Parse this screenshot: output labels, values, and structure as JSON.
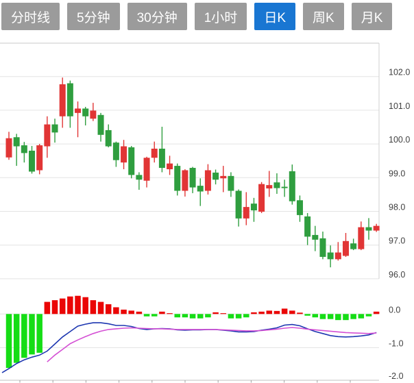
{
  "tabs": {
    "items": [
      {
        "label": "分时线"
      },
      {
        "label": "5分钟"
      },
      {
        "label": "30分钟"
      },
      {
        "label": "1小时"
      },
      {
        "label": "日K"
      },
      {
        "label": "周K"
      },
      {
        "label": "月K"
      }
    ],
    "active_index": 4,
    "active_label": "日K"
  },
  "colors": {
    "tab_bg": "#9b9b9b",
    "tab_active_bg": "#1976d2",
    "tab_text": "#ffffff",
    "candle_up": "#e13535",
    "candle_down": "#2f9e3f",
    "macd_positive": "#ea0606",
    "macd_negative": "#15dd15",
    "dif_line": "#1c36b0",
    "dea_line": "#d44fd4",
    "axis_text": "#404040",
    "gridline": "#e4e4e4"
  },
  "chart_data": [
    {
      "type": "candlestick",
      "timeframe": "日K",
      "up_color": "#e13535",
      "down_color": "#2f9e3f",
      "grid": true,
      "legend": "none",
      "ylim": [
        95.9,
        103.0
      ],
      "y_ticks": [
        {
          "value": 102.0,
          "label": "102.0"
        },
        {
          "value": 101.0,
          "label": "101.0"
        },
        {
          "value": 100.0,
          "label": "100.0"
        },
        {
          "value": 99.0,
          "label": "99.0"
        },
        {
          "value": 98.0,
          "label": "98.0"
        },
        {
          "value": 97.0,
          "label": "97.0"
        },
        {
          "value": 96.0,
          "label": "96.0"
        }
      ],
      "ohlc_format": "[open, high, low, close]; up candle (close>=open) drawn red, down candle green",
      "candles": [
        [
          99.6,
          100.36,
          99.53,
          100.17
        ],
        [
          100.2,
          100.3,
          99.35,
          99.93
        ],
        [
          99.96,
          100.06,
          99.45,
          99.73
        ],
        [
          99.8,
          99.94,
          99.12,
          99.18
        ],
        [
          99.22,
          100.0,
          99.1,
          99.96
        ],
        [
          99.93,
          100.82,
          99.59,
          100.58
        ],
        [
          100.58,
          100.75,
          100.04,
          100.34
        ],
        [
          100.82,
          101.97,
          100.48,
          101.77
        ],
        [
          101.8,
          101.88,
          100.48,
          100.82
        ],
        [
          100.92,
          101.26,
          100.2,
          101.05
        ],
        [
          101.05,
          101.1,
          100.55,
          100.82
        ],
        [
          100.75,
          101.22,
          100.68,
          100.99
        ],
        [
          100.86,
          100.92,
          100.07,
          100.27
        ],
        [
          100.41,
          100.58,
          99.9,
          99.93
        ],
        [
          100.04,
          100.07,
          99.32,
          99.52
        ],
        [
          99.45,
          100.12,
          99.25,
          99.93
        ],
        [
          99.9,
          99.94,
          98.98,
          99.08
        ],
        [
          99.08,
          99.16,
          98.64,
          98.94
        ],
        [
          98.91,
          99.62,
          98.71,
          99.59
        ],
        [
          99.59,
          100.07,
          99.45,
          99.86
        ],
        [
          99.86,
          100.51,
          99.16,
          99.29
        ],
        [
          99.25,
          99.65,
          99.08,
          99.42
        ],
        [
          99.35,
          99.42,
          98.47,
          98.61
        ],
        [
          98.61,
          99.25,
          98.44,
          99.22
        ],
        [
          99.29,
          99.32,
          98.54,
          98.71
        ],
        [
          98.76,
          98.98,
          98.16,
          98.59
        ],
        [
          98.61,
          99.4,
          98.5,
          99.22
        ],
        [
          99.15,
          99.24,
          98.8,
          98.94
        ],
        [
          98.98,
          99.35,
          98.57,
          99.05
        ],
        [
          99.05,
          99.16,
          98.43,
          98.61
        ],
        [
          98.61,
          98.65,
          97.55,
          97.79
        ],
        [
          97.79,
          98.57,
          97.59,
          98.13
        ],
        [
          98.23,
          98.4,
          97.69,
          98.03
        ],
        [
          97.99,
          98.87,
          97.95,
          98.81
        ],
        [
          98.68,
          99.2,
          98.43,
          98.78
        ],
        [
          98.86,
          99.13,
          98.52,
          98.69
        ],
        [
          98.73,
          98.94,
          98.43,
          98.69
        ],
        [
          99.19,
          99.39,
          98.2,
          98.3
        ],
        [
          98.33,
          98.47,
          97.69,
          97.89
        ],
        [
          97.85,
          97.95,
          97.0,
          97.25
        ],
        [
          97.3,
          97.57,
          96.82,
          97.16
        ],
        [
          97.2,
          97.4,
          96.58,
          96.65
        ],
        [
          96.78,
          96.99,
          96.34,
          96.58
        ],
        [
          96.58,
          97.09,
          96.54,
          96.78
        ],
        [
          96.68,
          97.36,
          96.65,
          97.12
        ],
        [
          97.05,
          97.19,
          96.85,
          96.88
        ],
        [
          96.88,
          97.7,
          96.85,
          97.53
        ],
        [
          97.53,
          97.8,
          97.16,
          97.43
        ],
        [
          97.43,
          97.63,
          97.39,
          97.57
        ]
      ]
    },
    {
      "type": "macd",
      "ylim": [
        -2.1,
        0.6
      ],
      "y_ticks": [
        {
          "value": 0,
          "label": "0.0"
        },
        {
          "value": -1,
          "label": "-1.0"
        },
        {
          "value": -2,
          "label": "-2.0"
        }
      ],
      "positive_color": "#ea0606",
      "negative_color": "#15dd15",
      "dif_color": "#1c36b0",
      "dea_color": "#d44fd4",
      "histogram": [
        -1.6,
        -1.45,
        -1.3,
        -1.2,
        -1.15,
        0.36,
        0.41,
        0.46,
        0.52,
        0.54,
        0.5,
        0.41,
        0.36,
        0.29,
        0.2,
        0.13,
        0.1,
        0.07,
        -0.07,
        -0.07,
        0.07,
        0.02,
        -0.1,
        -0.1,
        -0.13,
        -0.13,
        -0.1,
        0.05,
        0.02,
        -0.13,
        -0.13,
        -0.1,
        0.05,
        0.07,
        0.1,
        0.09,
        0.16,
        0.1,
        0.04,
        -0.05,
        -0.1,
        -0.15,
        -0.15,
        -0.18,
        -0.18,
        -0.15,
        -0.13,
        -0.07,
        0.07
      ],
      "dif_lead": {
        "value": -1.74
      },
      "dif": [
        -1.62,
        -1.47,
        -1.36,
        -1.28,
        -1.22,
        -1.1,
        -0.89,
        -0.68,
        -0.52,
        -0.36,
        -0.3,
        -0.26,
        -0.26,
        -0.29,
        -0.34,
        -0.34,
        -0.37,
        -0.43,
        -0.46,
        -0.44,
        -0.43,
        -0.44,
        -0.47,
        -0.48,
        -0.47,
        -0.47,
        -0.46,
        -0.46,
        -0.48,
        -0.5,
        -0.53,
        -0.53,
        -0.52,
        -0.48,
        -0.45,
        -0.41,
        -0.33,
        -0.31,
        -0.35,
        -0.44,
        -0.52,
        -0.58,
        -0.64,
        -0.67,
        -0.68,
        -0.67,
        -0.65,
        -0.62,
        -0.55
      ],
      "dea": [
        null,
        null,
        null,
        null,
        null,
        -1.42,
        -1.22,
        -1.05,
        -0.88,
        -0.77,
        -0.67,
        -0.58,
        -0.51,
        -0.46,
        -0.44,
        -0.42,
        -0.41,
        -0.42,
        -0.43,
        -0.44,
        -0.44,
        -0.45,
        -0.46,
        -0.46,
        -0.46,
        -0.46,
        -0.46,
        -0.46,
        -0.47,
        -0.48,
        -0.49,
        -0.5,
        -0.5,
        -0.49,
        -0.47,
        -0.45,
        -0.42,
        -0.4,
        -0.42,
        -0.45,
        -0.47,
        -0.49,
        -0.51,
        -0.53,
        -0.55,
        -0.56,
        -0.57,
        -0.58,
        -0.56
      ]
    }
  ]
}
